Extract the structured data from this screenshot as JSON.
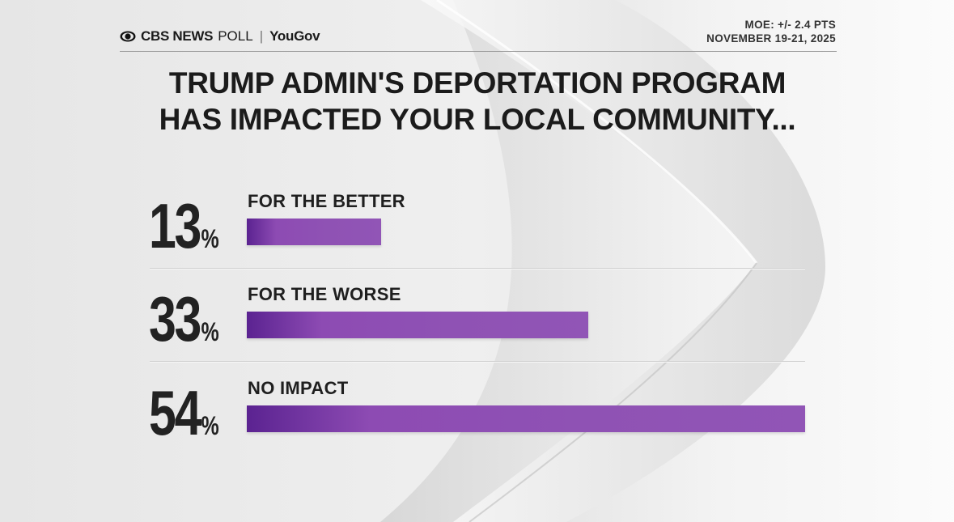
{
  "header": {
    "brand_network": "CBS NEWS",
    "brand_poll": "POLL",
    "brand_separator": "|",
    "brand_partner": "YouGov",
    "moe": "MOE: +/- 2.4 PTS",
    "dates": "NOVEMBER 19-21, 2025"
  },
  "colors": {
    "bar": "#8d4bb3",
    "bar_dark": "#5b2391",
    "text": "#1b1b1b"
  },
  "chart_data": {
    "type": "bar",
    "orientation": "horizontal",
    "title_lines": [
      "TRUMP ADMIN'S DEPORTATION PROGRAM",
      "HAS IMPACTED YOUR LOCAL COMMUNITY..."
    ],
    "categories": [
      "FOR THE BETTER",
      "FOR THE WORSE",
      "NO IMPACT"
    ],
    "values": [
      13,
      33,
      54
    ],
    "value_labels": [
      "13",
      "33",
      "54"
    ],
    "unit": "%",
    "xlim": [
      0,
      54
    ],
    "grid": false,
    "legend": "none"
  }
}
